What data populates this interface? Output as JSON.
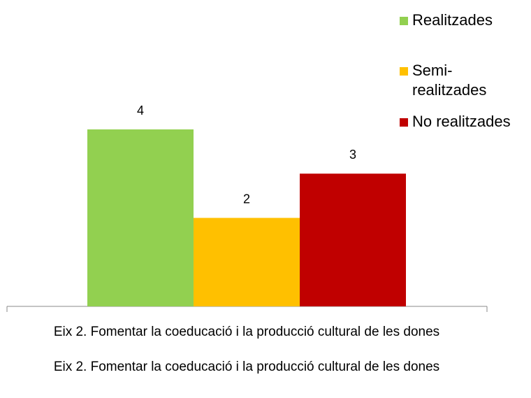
{
  "chart_data": {
    "type": "bar",
    "categories": [
      "Eix 2. Fomentar la coeducació i la producció cultural de les dones"
    ],
    "xlabel": "Eix 2. Fomentar la coeducació i la producció cultural de les dones",
    "series": [
      {
        "name": "Realitzades",
        "color": "#92d050",
        "values": [
          4
        ]
      },
      {
        "name": "Semi-realitzades",
        "color": "#ffc000",
        "values": [
          2
        ]
      },
      {
        "name": "No realitzades",
        "color": "#c00000",
        "values": [
          3
        ]
      }
    ],
    "legend": "right"
  }
}
